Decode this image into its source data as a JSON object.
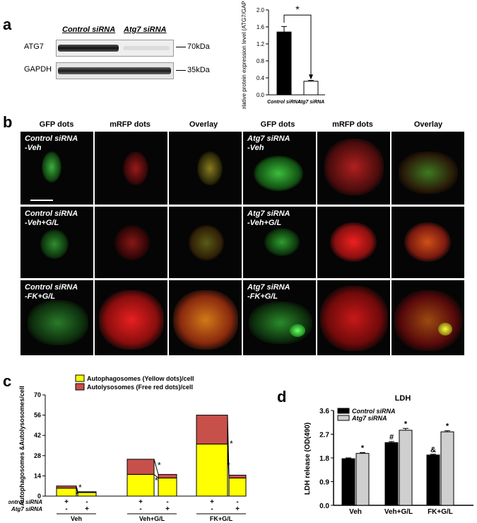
{
  "panels": {
    "a": "a",
    "b": "b",
    "c": "c",
    "d": "d"
  },
  "western_blot": {
    "lane_headers": [
      "Control siRNA",
      "Atg7 siRNA"
    ],
    "rows": [
      {
        "label": "ATG7",
        "marker": "70kDa"
      },
      {
        "label": "GAPDH",
        "marker": "35kDa"
      }
    ]
  },
  "microscopy": {
    "column_headers": [
      "GFP dots",
      "mRFP dots",
      "Overlay",
      "GFP dots",
      "mRFP dots",
      "Overlay"
    ],
    "row_labels": [
      {
        "left": "Control siRNA\n-Veh",
        "right": "Atg7 siRNA\n-Veh"
      },
      {
        "left": "Control siRNA\n-Veh+G/L",
        "right": "Atg7 siRNA\n-Veh+G/L"
      },
      {
        "left": "Control siRNA\n-FK+G/L",
        "right": "Atg7 siRNA\n-FK+G/L"
      }
    ]
  },
  "chart_data": [
    {
      "type": "bar",
      "panel": "a",
      "categories": [
        "Control siRNA",
        "Atg7 siRNA"
      ],
      "values": [
        1.48,
        0.32
      ],
      "errors": [
        0.13,
        0.02
      ],
      "ylabel": "Relative protein expression level (ATG7/GAPDH)",
      "ylim": [
        0,
        2.0
      ],
      "yticks": [
        "0.0",
        "0.4",
        "0.8",
        "1.2",
        "1.6",
        "2.0"
      ],
      "annotation": "*",
      "colors": [
        "#000000",
        "#ffffff"
      ]
    },
    {
      "type": "bar",
      "panel": "c",
      "stacked": true,
      "ylabel": "Autophagosomes &Autolysosomes/cell",
      "ylim": [
        0,
        70
      ],
      "yticks": [
        "0",
        "14",
        "28",
        "42",
        "56",
        "70"
      ],
      "legend": [
        "Autophagosomes (Yellow dots)/cell",
        "Autolysosomes (Free red dots)/cell"
      ],
      "colors": {
        "autophagosomes": "#ffff00",
        "autolysosomes": "#c8504a"
      },
      "groups": [
        "Veh",
        "Veh+G/L",
        "FK+G/L"
      ],
      "row_labels": [
        "Control siRNA",
        "Atg7 siRNA"
      ],
      "bars": [
        {
          "group": "Veh",
          "control": "+",
          "atg7": "-",
          "autophagosomes": 5.5,
          "autolysosomes": 1.5
        },
        {
          "group": "Veh",
          "control": "-",
          "atg7": "+",
          "autophagosomes": 2.5,
          "autolysosomes": 0.5
        },
        {
          "group": "Veh+G/L",
          "control": "+",
          "atg7": "-",
          "autophagosomes": 15,
          "autolysosomes": 10.5
        },
        {
          "group": "Veh+G/L",
          "control": "-",
          "atg7": "+",
          "autophagosomes": 12.5,
          "autolysosomes": 2.5
        },
        {
          "group": "FK+G/L",
          "control": "+",
          "atg7": "-",
          "autophagosomes": 36,
          "autolysosomes": 20
        },
        {
          "group": "FK+G/L",
          "control": "-",
          "atg7": "+",
          "autophagosomes": 12.5,
          "autolysosomes": 2
        }
      ],
      "annotation": "*"
    },
    {
      "type": "bar",
      "panel": "d",
      "title": "LDH",
      "ylabel": "LDH release (OD(490)",
      "ylim": [
        0.0,
        3.6
      ],
      "yticks": [
        "0.0",
        "0.9",
        "1.8",
        "2.7",
        "3.6"
      ],
      "categories": [
        "Veh",
        "Veh+G/L",
        "FK+G/L"
      ],
      "series": [
        {
          "name": "Control siRNA",
          "values": [
            1.77,
            2.38,
            1.91
          ],
          "errors": [
            0.03,
            0.04,
            0.03
          ],
          "marks": [
            "",
            "#",
            "&"
          ],
          "color": "#000000"
        },
        {
          "name": "Atg7 siRNA",
          "values": [
            1.97,
            2.85,
            2.79
          ],
          "errors": [
            0.03,
            0.07,
            0.04
          ],
          "marks": [
            "*",
            "*",
            "*"
          ],
          "color": "#cfcfcf"
        }
      ]
    }
  ]
}
